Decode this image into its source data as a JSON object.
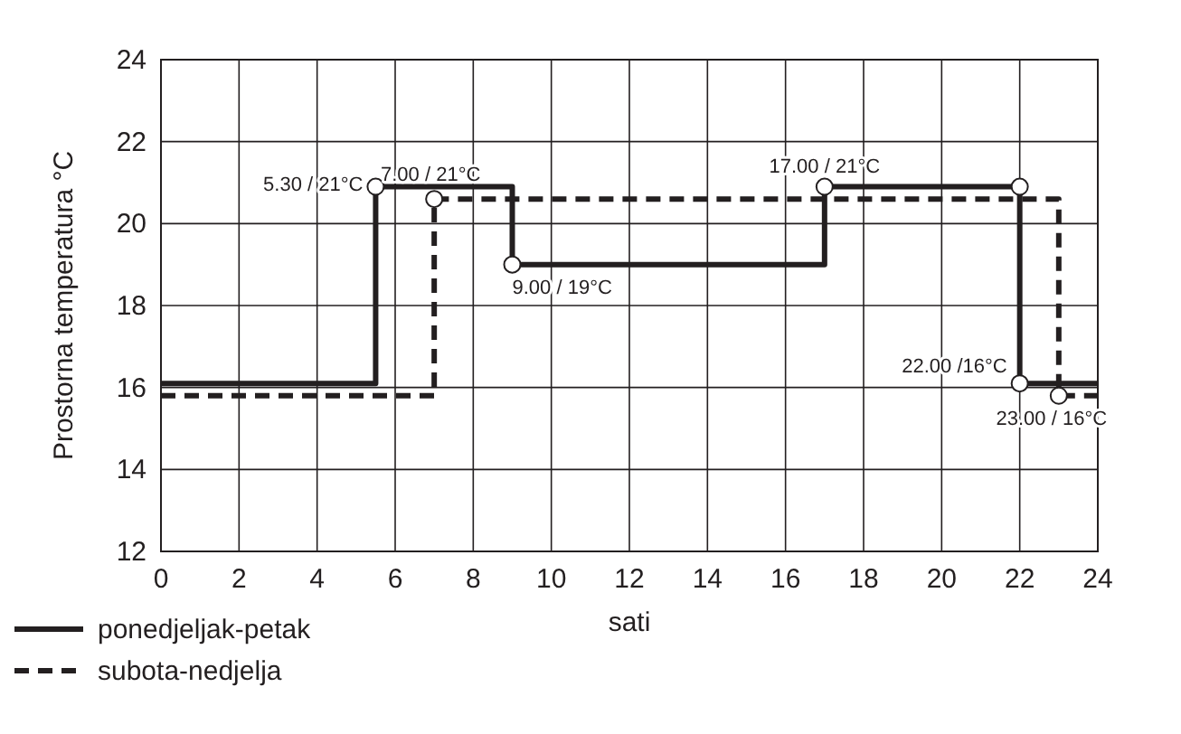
{
  "chart_data": {
    "type": "step",
    "xlabel": "sati",
    "ylabel": "Prostorna temperatura °C",
    "xlim": [
      0,
      24
    ],
    "xticks": [
      0,
      2,
      4,
      6,
      8,
      10,
      12,
      14,
      16,
      18,
      20,
      22,
      24
    ],
    "ylim": [
      12,
      24
    ],
    "yticks": [
      12,
      14,
      16,
      18,
      20,
      22,
      24
    ],
    "grid": true,
    "legend": "bottom left",
    "series": [
      {
        "name": "ponedjeljak-petak",
        "color": "#231f20",
        "line_style": "solid",
        "x": [
          0,
          5.5,
          9,
          17,
          22,
          24
        ],
        "values": [
          16.1,
          20.9,
          19,
          20.9,
          16.1,
          16.1
        ]
      },
      {
        "name": "subota-nedjelja",
        "color": "#231f20",
        "line_style": "dashed",
        "x": [
          0,
          7,
          23,
          24
        ],
        "values": [
          15.8,
          20.6,
          15.8,
          15.8
        ]
      },
      {
        "type": "scatter",
        "color": "#231f20",
        "marker": "circle",
        "x": [
          5.5,
          9,
          17,
          22,
          22
        ],
        "values": [
          20.9,
          19,
          20.9,
          20.9,
          16.1
        ]
      },
      {
        "type": "scatter",
        "color": "#231f20",
        "marker": "circle",
        "x": [
          7,
          23
        ],
        "values": [
          20.6,
          15.8
        ]
      }
    ],
    "annotations": [
      {
        "text": "5.30 / 21°C",
        "x": 5.5,
        "y": 20.9
      },
      {
        "text": "7.00 / 21°C",
        "x": 7,
        "y": 20.6
      },
      {
        "text": "9.00 / 19°C",
        "x": 9,
        "y": 19
      },
      {
        "text": "17.00 / 21°C",
        "x": 17,
        "y": 20.9
      },
      {
        "text": "22.00 /16°C",
        "x": 22,
        "y": 16.1
      },
      {
        "text": "23.00 / 16°C",
        "x": 23,
        "y": 15.8
      }
    ]
  }
}
